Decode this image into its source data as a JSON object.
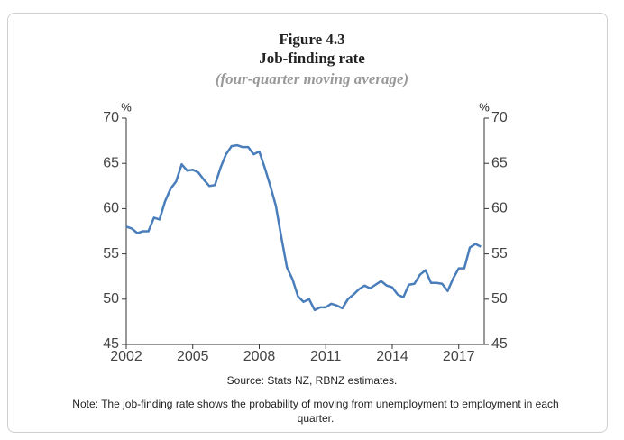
{
  "chart_data": {
    "type": "line",
    "title": "Figure 4.3",
    "subtitle": "Job-finding rate",
    "subtitle2": "(four-quarter moving average)",
    "y_unit": "%",
    "y2_unit": "%",
    "source": "Source: Stats NZ, RBNZ estimates.",
    "note": "Note: The job-finding rate shows the probability of moving from unemployment to employment in each quarter.",
    "x": [
      2002,
      2002.25,
      2002.5,
      2002.75,
      2003,
      2003.25,
      2003.5,
      2003.75,
      2004,
      2004.25,
      2004.5,
      2004.75,
      2005,
      2005.25,
      2005.5,
      2005.75,
      2006,
      2006.25,
      2006.5,
      2006.75,
      2007,
      2007.25,
      2007.5,
      2007.75,
      2008,
      2008.25,
      2008.5,
      2008.75,
      2009,
      2009.25,
      2009.5,
      2009.75,
      2010,
      2010.25,
      2010.5,
      2010.75,
      2011,
      2011.25,
      2011.5,
      2011.75,
      2012,
      2012.25,
      2012.5,
      2012.75,
      2013,
      2013.25,
      2013.5,
      2013.75,
      2014,
      2014.25,
      2014.5,
      2014.75,
      2015,
      2015.25,
      2015.5,
      2015.75,
      2016,
      2016.25,
      2016.5,
      2016.75,
      2017,
      2017.25,
      2017.5,
      2017.75,
      2018
    ],
    "series": [
      {
        "name": "Job-finding rate",
        "color": "#4a7ebb",
        "values": [
          58.0,
          57.8,
          57.3,
          57.5,
          57.5,
          59.0,
          58.8,
          60.8,
          62.2,
          63.0,
          64.9,
          64.2,
          64.3,
          64.0,
          63.2,
          62.5,
          62.6,
          64.5,
          66.0,
          66.9,
          67.0,
          66.8,
          66.8,
          66.0,
          66.3,
          64.5,
          62.5,
          60.3,
          56.8,
          53.5,
          52.2,
          50.3,
          49.7,
          50.0,
          48.8,
          49.1,
          49.1,
          49.5,
          49.3,
          49.0,
          50.0,
          50.5,
          51.1,
          51.5,
          51.2,
          51.6,
          52.0,
          51.5,
          51.3,
          50.5,
          50.2,
          51.6,
          51.7,
          52.7,
          53.2,
          51.8,
          51.8,
          51.7,
          50.9,
          52.3,
          53.4,
          53.4,
          55.7,
          56.1,
          55.8
        ]
      }
    ],
    "xlim": [
      2002,
      2018.15
    ],
    "xticks": [
      2002,
      2005,
      2008,
      2011,
      2014,
      2017
    ],
    "ylim": [
      45,
      70
    ],
    "yticks": [
      45,
      50,
      55,
      60,
      65,
      70
    ],
    "y2lim": [
      45,
      70
    ],
    "y2ticks": [
      45,
      50,
      55,
      60,
      65,
      70
    ]
  }
}
